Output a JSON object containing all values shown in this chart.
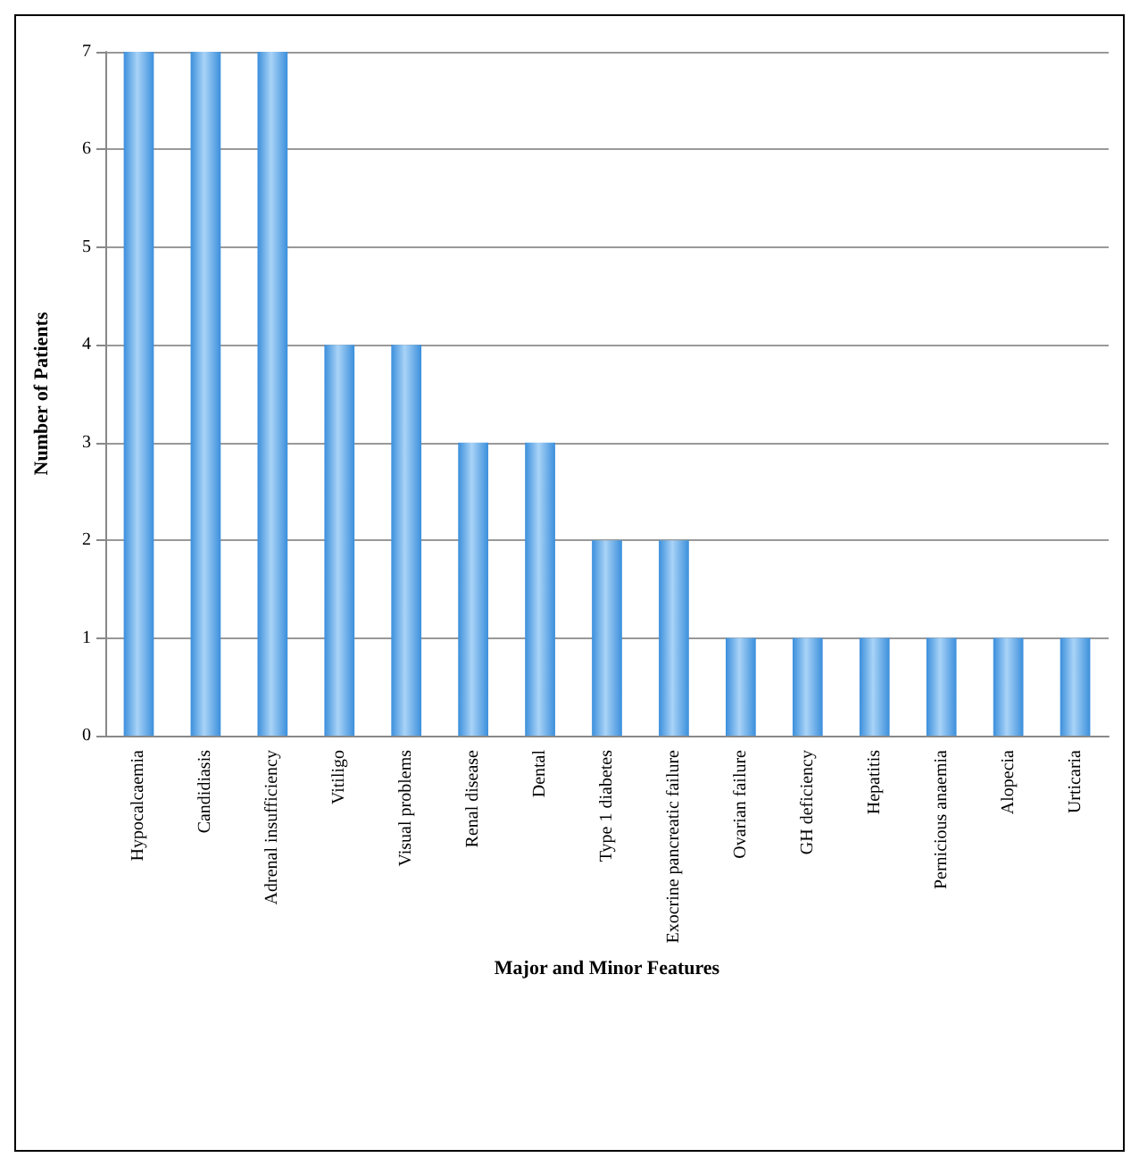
{
  "chart_data": {
    "type": "bar",
    "xlabel": "Major and Minor Features",
    "ylabel": "Number of Patients",
    "categories": [
      "Hypocalcaemia",
      "Candidiasis",
      "Adrenal insufficiency",
      "Vitiligo",
      "Visual problems",
      "Renal disease",
      "Dental",
      "Type 1 diabetes",
      "Exocrine pancreatic failure",
      "Ovarian failure",
      "GH deficiency",
      "Hepatitis",
      "Pernicious anaemia",
      "Alopecia",
      "Urticaria"
    ],
    "values": [
      7,
      7,
      7,
      4,
      4,
      3,
      3,
      2,
      2,
      1,
      1,
      1,
      1,
      1,
      1
    ],
    "color": "#3b8fdc",
    "ylim": [
      0,
      7
    ],
    "yticks": [
      0,
      1,
      2,
      3,
      4,
      5,
      6,
      7
    ],
    "grid": "y"
  }
}
